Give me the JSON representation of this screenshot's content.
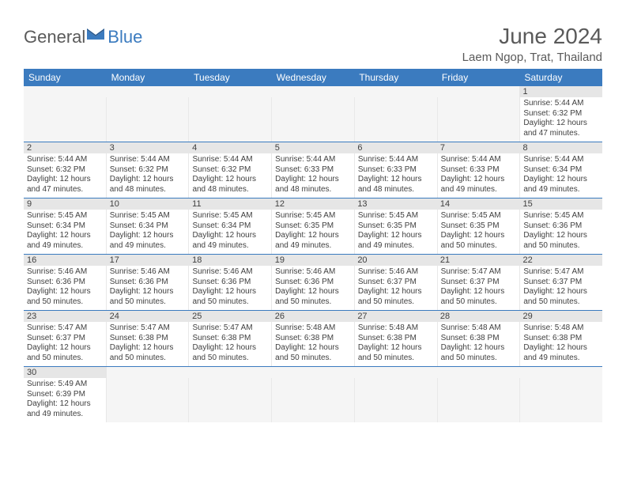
{
  "logo": {
    "text1": "General",
    "text2": "Blue"
  },
  "title": "June 2024",
  "location": "Laem Ngop, Trat, Thailand",
  "colors": {
    "header_bg": "#3b7bbf",
    "header_text": "#ffffff",
    "daynum_bg": "#e6e6e6",
    "text": "#404040",
    "border": "#3b7bbf",
    "empty_bg": "#f5f5f5"
  },
  "day_headers": [
    "Sunday",
    "Monday",
    "Tuesday",
    "Wednesday",
    "Thursday",
    "Friday",
    "Saturday"
  ],
  "weeks": [
    {
      "numbers": [
        "",
        "",
        "",
        "",
        "",
        "",
        "1"
      ],
      "cells": [
        null,
        null,
        null,
        null,
        null,
        null,
        {
          "sunrise": "5:44 AM",
          "sunset": "6:32 PM",
          "daylight": "12 hours and 47 minutes."
        }
      ]
    },
    {
      "numbers": [
        "2",
        "3",
        "4",
        "5",
        "6",
        "7",
        "8"
      ],
      "cells": [
        {
          "sunrise": "5:44 AM",
          "sunset": "6:32 PM",
          "daylight": "12 hours and 47 minutes."
        },
        {
          "sunrise": "5:44 AM",
          "sunset": "6:32 PM",
          "daylight": "12 hours and 48 minutes."
        },
        {
          "sunrise": "5:44 AM",
          "sunset": "6:32 PM",
          "daylight": "12 hours and 48 minutes."
        },
        {
          "sunrise": "5:44 AM",
          "sunset": "6:33 PM",
          "daylight": "12 hours and 48 minutes."
        },
        {
          "sunrise": "5:44 AM",
          "sunset": "6:33 PM",
          "daylight": "12 hours and 48 minutes."
        },
        {
          "sunrise": "5:44 AM",
          "sunset": "6:33 PM",
          "daylight": "12 hours and 49 minutes."
        },
        {
          "sunrise": "5:44 AM",
          "sunset": "6:34 PM",
          "daylight": "12 hours and 49 minutes."
        }
      ]
    },
    {
      "numbers": [
        "9",
        "10",
        "11",
        "12",
        "13",
        "14",
        "15"
      ],
      "cells": [
        {
          "sunrise": "5:45 AM",
          "sunset": "6:34 PM",
          "daylight": "12 hours and 49 minutes."
        },
        {
          "sunrise": "5:45 AM",
          "sunset": "6:34 PM",
          "daylight": "12 hours and 49 minutes."
        },
        {
          "sunrise": "5:45 AM",
          "sunset": "6:34 PM",
          "daylight": "12 hours and 49 minutes."
        },
        {
          "sunrise": "5:45 AM",
          "sunset": "6:35 PM",
          "daylight": "12 hours and 49 minutes."
        },
        {
          "sunrise": "5:45 AM",
          "sunset": "6:35 PM",
          "daylight": "12 hours and 49 minutes."
        },
        {
          "sunrise": "5:45 AM",
          "sunset": "6:35 PM",
          "daylight": "12 hours and 50 minutes."
        },
        {
          "sunrise": "5:45 AM",
          "sunset": "6:36 PM",
          "daylight": "12 hours and 50 minutes."
        }
      ]
    },
    {
      "numbers": [
        "16",
        "17",
        "18",
        "19",
        "20",
        "21",
        "22"
      ],
      "cells": [
        {
          "sunrise": "5:46 AM",
          "sunset": "6:36 PM",
          "daylight": "12 hours and 50 minutes."
        },
        {
          "sunrise": "5:46 AM",
          "sunset": "6:36 PM",
          "daylight": "12 hours and 50 minutes."
        },
        {
          "sunrise": "5:46 AM",
          "sunset": "6:36 PM",
          "daylight": "12 hours and 50 minutes."
        },
        {
          "sunrise": "5:46 AM",
          "sunset": "6:36 PM",
          "daylight": "12 hours and 50 minutes."
        },
        {
          "sunrise": "5:46 AM",
          "sunset": "6:37 PM",
          "daylight": "12 hours and 50 minutes."
        },
        {
          "sunrise": "5:47 AM",
          "sunset": "6:37 PM",
          "daylight": "12 hours and 50 minutes."
        },
        {
          "sunrise": "5:47 AM",
          "sunset": "6:37 PM",
          "daylight": "12 hours and 50 minutes."
        }
      ]
    },
    {
      "numbers": [
        "23",
        "24",
        "25",
        "26",
        "27",
        "28",
        "29"
      ],
      "cells": [
        {
          "sunrise": "5:47 AM",
          "sunset": "6:37 PM",
          "daylight": "12 hours and 50 minutes."
        },
        {
          "sunrise": "5:47 AM",
          "sunset": "6:38 PM",
          "daylight": "12 hours and 50 minutes."
        },
        {
          "sunrise": "5:47 AM",
          "sunset": "6:38 PM",
          "daylight": "12 hours and 50 minutes."
        },
        {
          "sunrise": "5:48 AM",
          "sunset": "6:38 PM",
          "daylight": "12 hours and 50 minutes."
        },
        {
          "sunrise": "5:48 AM",
          "sunset": "6:38 PM",
          "daylight": "12 hours and 50 minutes."
        },
        {
          "sunrise": "5:48 AM",
          "sunset": "6:38 PM",
          "daylight": "12 hours and 50 minutes."
        },
        {
          "sunrise": "5:48 AM",
          "sunset": "6:38 PM",
          "daylight": "12 hours and 49 minutes."
        }
      ]
    },
    {
      "numbers": [
        "30",
        "",
        "",
        "",
        "",
        "",
        ""
      ],
      "cells": [
        {
          "sunrise": "5:49 AM",
          "sunset": "6:39 PM",
          "daylight": "12 hours and 49 minutes."
        },
        null,
        null,
        null,
        null,
        null,
        null
      ]
    }
  ],
  "labels": {
    "sunrise": "Sunrise:",
    "sunset": "Sunset:",
    "daylight": "Daylight:"
  }
}
